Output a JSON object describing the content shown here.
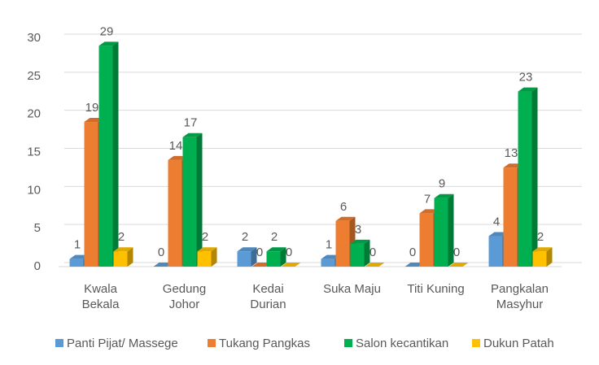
{
  "chart_data": {
    "type": "bar3d",
    "categories": [
      "Kwala Bekala",
      "Gedung Johor",
      "Kedai Durian",
      "Suka Maju",
      "Titi Kuning",
      "Pangkalan Masyhur"
    ],
    "series": [
      {
        "name": "Panti Pijat/ Massege",
        "color": "#5b9bd5",
        "values": [
          1,
          0,
          2,
          1,
          0,
          4
        ]
      },
      {
        "name": "Tukang Pangkas",
        "color": "#ed7d31",
        "values": [
          19,
          14,
          0,
          6,
          7,
          13
        ]
      },
      {
        "name": "Salon kecantikan",
        "color": "#00b050",
        "values": [
          29,
          17,
          2,
          3,
          9,
          23
        ]
      },
      {
        "name": "Dukun Patah",
        "color": "#ffc000",
        "values": [
          2,
          2,
          0,
          0,
          0,
          2
        ]
      }
    ],
    "ylim": [
      0,
      30
    ],
    "yticks": [
      0,
      5,
      10,
      15,
      20,
      25,
      30
    ],
    "grid": true,
    "legend": "bottom"
  }
}
